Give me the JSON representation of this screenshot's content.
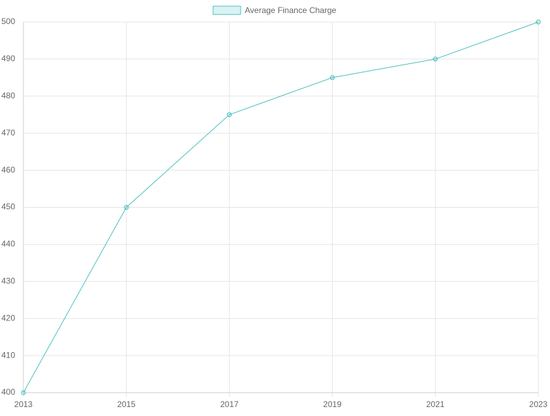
{
  "chart_data": {
    "type": "line",
    "categories": [
      "2013",
      "2015",
      "2017",
      "2019",
      "2021",
      "2023"
    ],
    "series": [
      {
        "name": "Average Finance Charge",
        "color": "#4bc0c0",
        "values": [
          400,
          450,
          475,
          485,
          490,
          500
        ]
      }
    ],
    "ylim": [
      400,
      500
    ],
    "yticks": [
      400,
      410,
      420,
      430,
      440,
      450,
      460,
      470,
      480,
      490,
      500
    ],
    "grid": true,
    "legend": "top"
  }
}
